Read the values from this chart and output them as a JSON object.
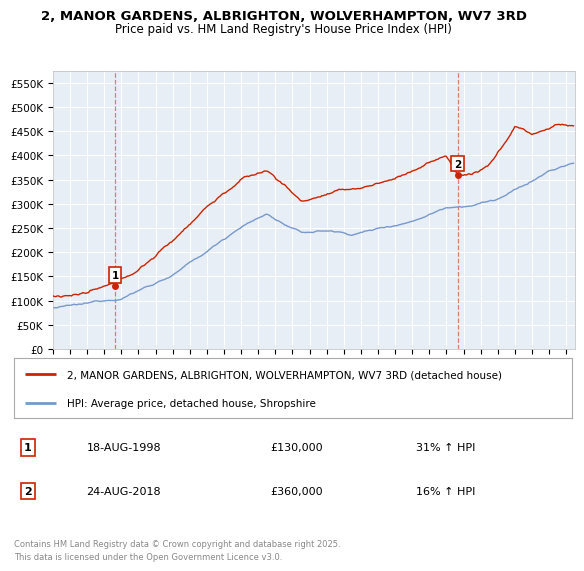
{
  "title_line1": "2, MANOR GARDENS, ALBRIGHTON, WOLVERHAMPTON, WV7 3RD",
  "title_line2": "Price paid vs. HM Land Registry's House Price Index (HPI)",
  "background_color": "#ffffff",
  "plot_bg_color": "#e8eef5",
  "grid_color": "#ffffff",
  "red_line_color": "#cc2200",
  "blue_line_color": "#7799cc",
  "ylim": [
    0,
    575000
  ],
  "yticks": [
    0,
    50000,
    100000,
    150000,
    200000,
    250000,
    300000,
    350000,
    400000,
    450000,
    500000,
    550000
  ],
  "ytick_labels": [
    "£0",
    "£50K",
    "£100K",
    "£150K",
    "£200K",
    "£250K",
    "£300K",
    "£350K",
    "£400K",
    "£450K",
    "£500K",
    "£550K"
  ],
  "sale1_date_num": 1998.63,
  "sale1_price": 130000,
  "sale2_date_num": 2018.65,
  "sale2_price": 360000,
  "legend_red_label": "2, MANOR GARDENS, ALBRIGHTON, WOLVERHAMPTON, WV7 3RD (detached house)",
  "legend_blue_label": "HPI: Average price, detached house, Shropshire",
  "annotation1_date": "18-AUG-1998",
  "annotation1_price": "£130,000",
  "annotation1_hpi": "31% ↑ HPI",
  "annotation2_date": "24-AUG-2018",
  "annotation2_price": "£360,000",
  "annotation2_hpi": "16% ↑ HPI",
  "footer": "Contains HM Land Registry data © Crown copyright and database right 2025.\nThis data is licensed under the Open Government Licence v3.0."
}
